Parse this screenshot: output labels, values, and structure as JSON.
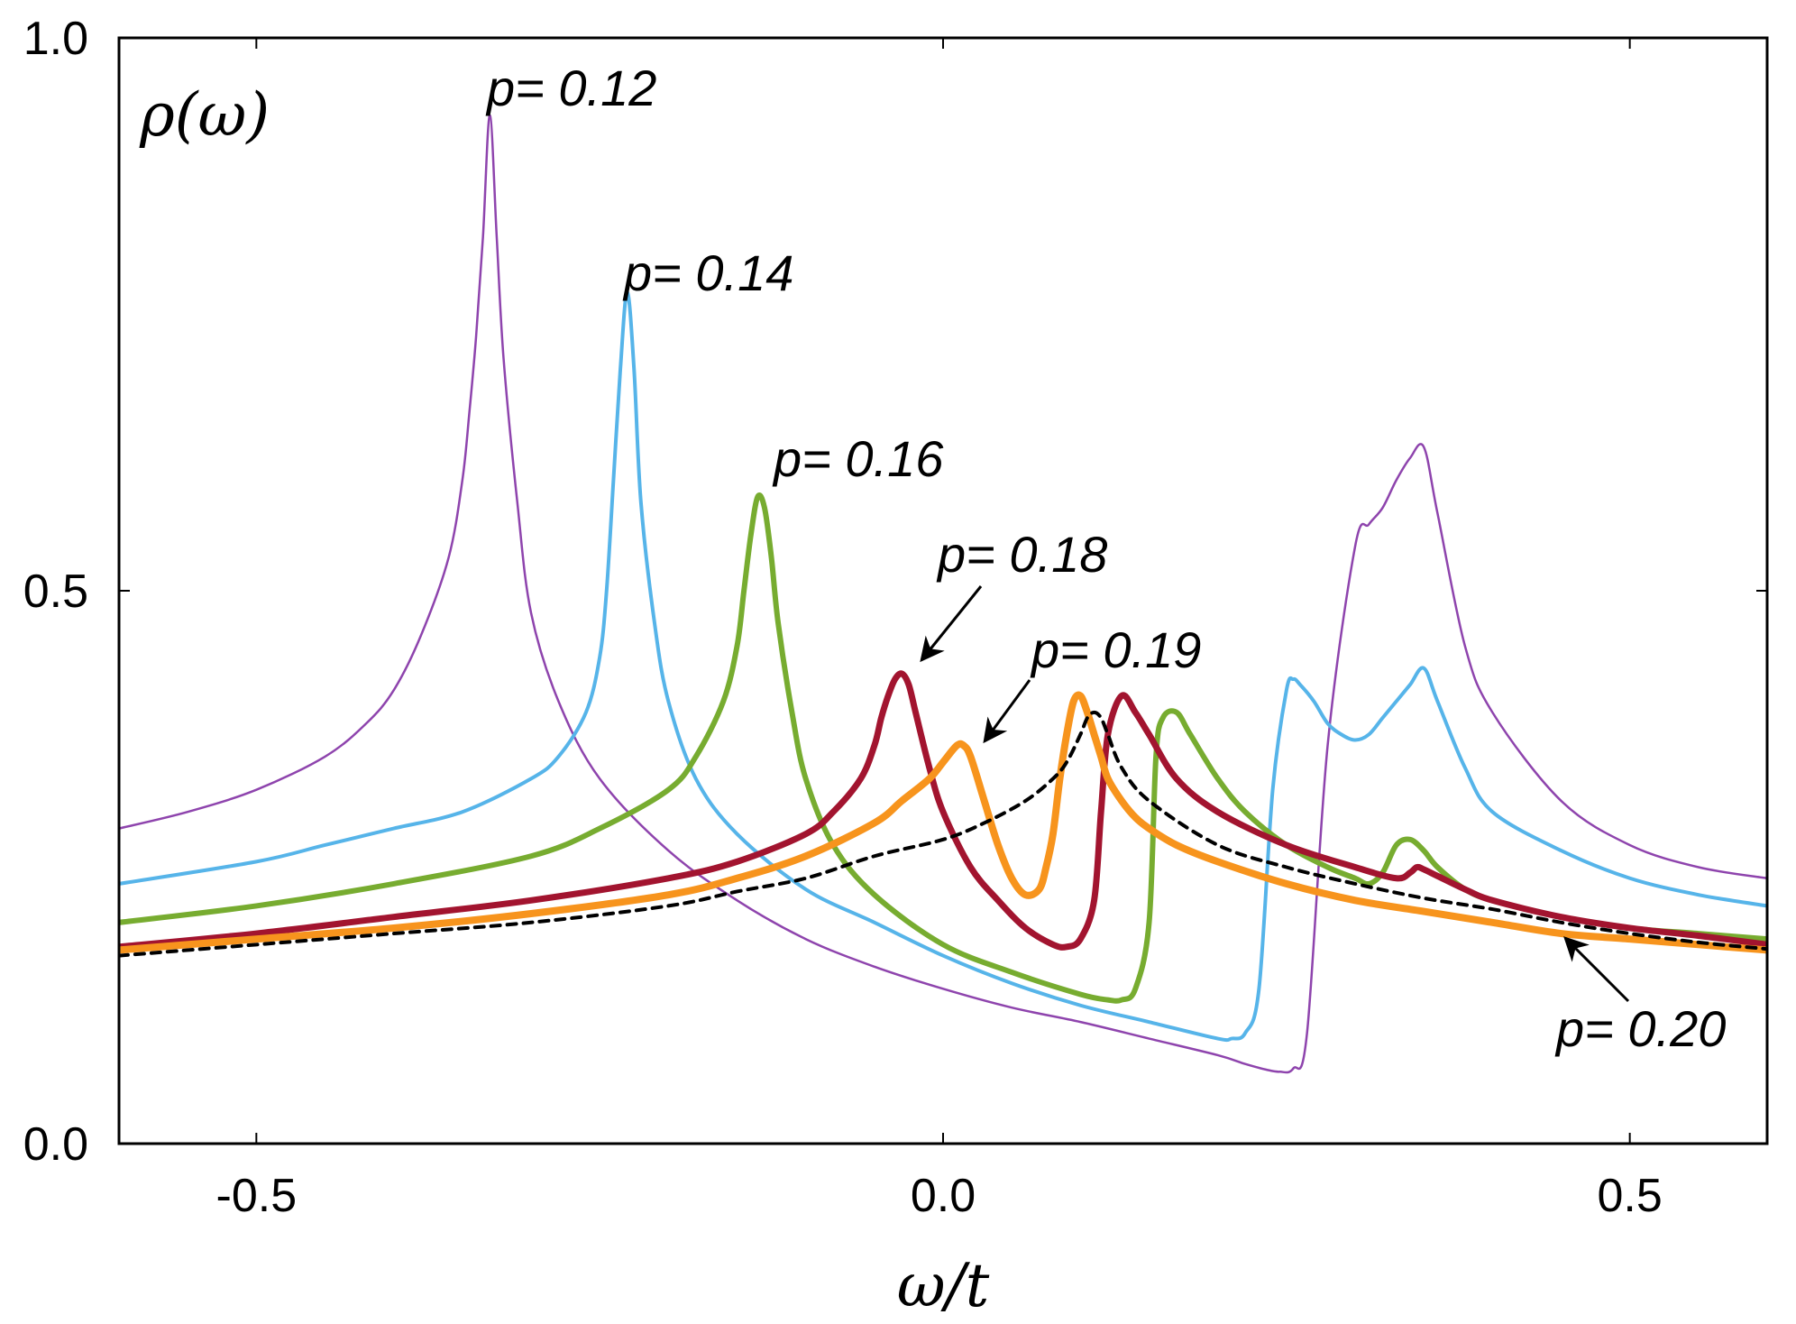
{
  "chart_data": {
    "type": "line",
    "title": "",
    "xlabel": "ω/t",
    "ylabel": "ρ(ω)",
    "xlim": [
      -0.6,
      0.6
    ],
    "ylim": [
      0.0,
      1.0
    ],
    "xticks": [
      -0.5,
      0.0,
      0.5
    ],
    "xtick_labels": [
      "-0.5",
      "0.0",
      "0.5"
    ],
    "yticks": [
      0.0,
      0.5,
      1.0
    ],
    "ytick_labels": [
      "0.0",
      "0.5",
      "1.0"
    ],
    "grid": false,
    "series": [
      {
        "name": "p= 0.12",
        "color": "#8e44ad",
        "x": [
          -0.6,
          -0.55,
          -0.5,
          -0.45,
          -0.42,
          -0.4,
          -0.38,
          -0.36,
          -0.35,
          -0.345,
          -0.34,
          -0.335,
          -0.33,
          -0.325,
          -0.32,
          -0.31,
          -0.3,
          -0.28,
          -0.25,
          -0.2,
          -0.15,
          -0.1,
          -0.05,
          0.0,
          0.05,
          0.1,
          0.15,
          0.2,
          0.22,
          0.235,
          0.245,
          0.255,
          0.265,
          0.28,
          0.3,
          0.31,
          0.32,
          0.33,
          0.34,
          0.35,
          0.36,
          0.38,
          0.4,
          0.45,
          0.5,
          0.55,
          0.6
        ],
        "y": [
          0.285,
          0.3,
          0.32,
          0.35,
          0.38,
          0.41,
          0.46,
          0.53,
          0.6,
          0.66,
          0.73,
          0.82,
          0.93,
          0.82,
          0.71,
          0.58,
          0.48,
          0.4,
          0.33,
          0.265,
          0.22,
          0.185,
          0.16,
          0.14,
          0.123,
          0.11,
          0.095,
          0.08,
          0.072,
          0.067,
          0.065,
          0.068,
          0.1,
          0.36,
          0.54,
          0.56,
          0.575,
          0.6,
          0.62,
          0.63,
          0.57,
          0.45,
          0.39,
          0.31,
          0.27,
          0.25,
          0.24
        ]
      },
      {
        "name": "p= 0.14",
        "color": "#56b4e9",
        "x": [
          -0.6,
          -0.5,
          -0.45,
          -0.4,
          -0.35,
          -0.3,
          -0.28,
          -0.26,
          -0.25,
          -0.245,
          -0.24,
          -0.235,
          -0.23,
          -0.225,
          -0.22,
          -0.21,
          -0.2,
          -0.18,
          -0.15,
          -0.1,
          -0.05,
          0.0,
          0.05,
          0.1,
          0.15,
          0.2,
          0.21,
          0.22,
          0.23,
          0.24,
          0.25,
          0.255,
          0.26,
          0.27,
          0.28,
          0.29,
          0.3,
          0.31,
          0.32,
          0.33,
          0.34,
          0.35,
          0.36,
          0.38,
          0.4,
          0.45,
          0.5,
          0.55,
          0.6
        ],
        "y": [
          0.235,
          0.255,
          0.27,
          0.285,
          0.3,
          0.33,
          0.35,
          0.39,
          0.44,
          0.5,
          0.6,
          0.7,
          0.77,
          0.7,
          0.58,
          0.47,
          0.4,
          0.33,
          0.28,
          0.23,
          0.2,
          0.17,
          0.145,
          0.125,
          0.11,
          0.095,
          0.095,
          0.1,
          0.14,
          0.32,
          0.41,
          0.42,
          0.415,
          0.4,
          0.38,
          0.37,
          0.365,
          0.37,
          0.385,
          0.4,
          0.415,
          0.43,
          0.4,
          0.34,
          0.3,
          0.265,
          0.24,
          0.225,
          0.215
        ]
      },
      {
        "name": "p= 0.16",
        "color": "#77ac30",
        "x": [
          -0.6,
          -0.5,
          -0.4,
          -0.3,
          -0.25,
          -0.2,
          -0.18,
          -0.16,
          -0.15,
          -0.145,
          -0.14,
          -0.135,
          -0.13,
          -0.125,
          -0.12,
          -0.11,
          -0.1,
          -0.08,
          -0.05,
          0.0,
          0.05,
          0.1,
          0.12,
          0.13,
          0.14,
          0.15,
          0.155,
          0.16,
          0.17,
          0.18,
          0.2,
          0.22,
          0.25,
          0.28,
          0.3,
          0.31,
          0.32,
          0.33,
          0.34,
          0.35,
          0.36,
          0.38,
          0.4,
          0.45,
          0.5,
          0.55,
          0.6
        ],
        "y": [
          0.2,
          0.215,
          0.235,
          0.26,
          0.285,
          0.32,
          0.35,
          0.4,
          0.45,
          0.5,
          0.55,
          0.585,
          0.575,
          0.53,
          0.47,
          0.39,
          0.33,
          0.27,
          0.225,
          0.18,
          0.155,
          0.135,
          0.13,
          0.13,
          0.14,
          0.2,
          0.35,
          0.385,
          0.39,
          0.37,
          0.33,
          0.3,
          0.27,
          0.25,
          0.24,
          0.235,
          0.245,
          0.27,
          0.275,
          0.265,
          0.25,
          0.23,
          0.22,
          0.205,
          0.195,
          0.19,
          0.185
        ]
      },
      {
        "name": "p= 0.18",
        "color": "#a2142f",
        "x": [
          -0.6,
          -0.5,
          -0.4,
          -0.3,
          -0.2,
          -0.15,
          -0.1,
          -0.08,
          -0.06,
          -0.05,
          -0.045,
          -0.04,
          -0.035,
          -0.03,
          -0.025,
          -0.02,
          -0.01,
          0.0,
          0.02,
          0.04,
          0.06,
          0.08,
          0.09,
          0.1,
          0.11,
          0.115,
          0.12,
          0.13,
          0.14,
          0.15,
          0.17,
          0.2,
          0.25,
          0.3,
          0.33,
          0.34,
          0.345,
          0.35,
          0.36,
          0.38,
          0.4,
          0.45,
          0.5,
          0.55,
          0.6
        ],
        "y": [
          0.178,
          0.19,
          0.205,
          0.22,
          0.24,
          0.255,
          0.28,
          0.3,
          0.33,
          0.36,
          0.385,
          0.405,
          0.42,
          0.425,
          0.415,
          0.39,
          0.34,
          0.3,
          0.25,
          0.22,
          0.195,
          0.18,
          0.178,
          0.185,
          0.22,
          0.3,
          0.37,
          0.405,
          0.39,
          0.37,
          0.33,
          0.3,
          0.27,
          0.25,
          0.24,
          0.245,
          0.25,
          0.248,
          0.242,
          0.23,
          0.22,
          0.205,
          0.195,
          0.188,
          0.18
        ]
      },
      {
        "name": "p= 0.19",
        "color": "#f7941d",
        "x": [
          -0.6,
          -0.5,
          -0.4,
          -0.3,
          -0.2,
          -0.15,
          -0.1,
          -0.05,
          -0.03,
          -0.01,
          0.0,
          0.01,
          0.015,
          0.02,
          0.03,
          0.04,
          0.05,
          0.06,
          0.07,
          0.075,
          0.08,
          0.085,
          0.09,
          0.095,
          0.1,
          0.105,
          0.11,
          0.115,
          0.12,
          0.13,
          0.14,
          0.15,
          0.17,
          0.2,
          0.25,
          0.3,
          0.35,
          0.4,
          0.45,
          0.5,
          0.55,
          0.6
        ],
        "y": [
          0.175,
          0.185,
          0.195,
          0.208,
          0.225,
          0.24,
          0.26,
          0.29,
          0.31,
          0.33,
          0.345,
          0.36,
          0.36,
          0.35,
          0.31,
          0.27,
          0.24,
          0.225,
          0.23,
          0.25,
          0.28,
          0.33,
          0.37,
          0.4,
          0.405,
          0.39,
          0.37,
          0.35,
          0.33,
          0.31,
          0.295,
          0.285,
          0.27,
          0.255,
          0.235,
          0.22,
          0.21,
          0.2,
          0.19,
          0.185,
          0.18,
          0.175
        ]
      },
      {
        "name": "p= 0.20",
        "color": "#000000",
        "dashed": true,
        "x": [
          -0.6,
          -0.5,
          -0.4,
          -0.3,
          -0.2,
          -0.15,
          -0.1,
          -0.05,
          0.0,
          0.03,
          0.06,
          0.08,
          0.09,
          0.1,
          0.105,
          0.11,
          0.115,
          0.12,
          0.13,
          0.15,
          0.2,
          0.25,
          0.3,
          0.35,
          0.4,
          0.45,
          0.5,
          0.55,
          0.6
        ],
        "y": [
          0.17,
          0.18,
          0.19,
          0.2,
          0.215,
          0.228,
          0.24,
          0.26,
          0.275,
          0.29,
          0.31,
          0.33,
          0.345,
          0.37,
          0.385,
          0.39,
          0.385,
          0.37,
          0.34,
          0.31,
          0.27,
          0.25,
          0.235,
          0.222,
          0.212,
          0.2,
          0.19,
          0.182,
          0.176
        ]
      }
    ],
    "annotations": [
      {
        "text": "p= 0.12",
        "series": "p= 0.12"
      },
      {
        "text": "p= 0.14",
        "series": "p= 0.14"
      },
      {
        "text": "p= 0.16",
        "series": "p= 0.16"
      },
      {
        "text": "p= 0.18",
        "series": "p= 0.18",
        "arrow": true
      },
      {
        "text": "p= 0.19",
        "series": "p= 0.19",
        "arrow": true
      },
      {
        "text": "p= 0.20",
        "series": "p= 0.20",
        "arrow": true
      }
    ]
  }
}
